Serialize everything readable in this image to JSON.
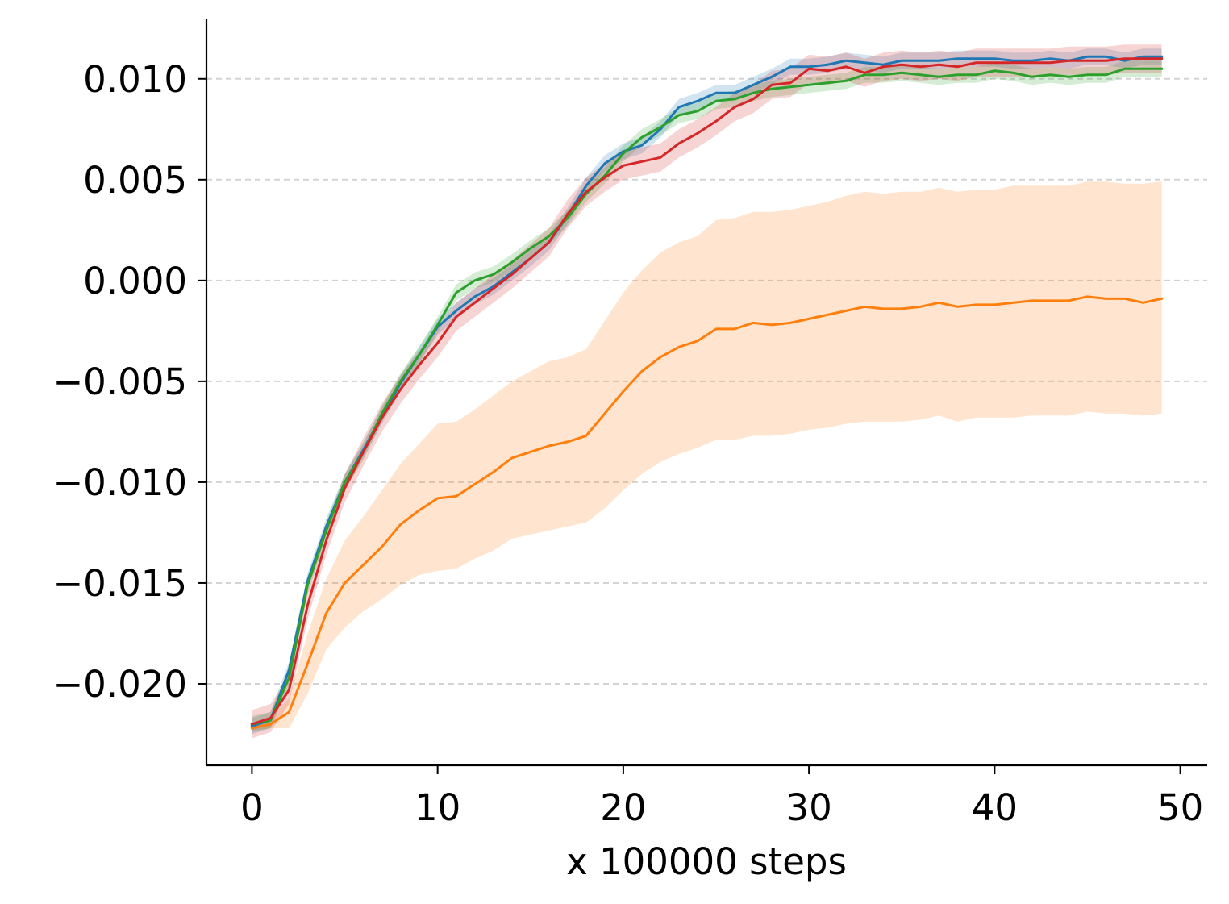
{
  "chart_data": {
    "type": "line",
    "title": "",
    "xlabel": "x 100000 steps",
    "ylabel": "",
    "xlim": [
      -2.45,
      51.45
    ],
    "ylim": [
      -0.02404,
      0.01295
    ],
    "xticks": [
      0,
      10,
      20,
      30,
      40,
      50
    ],
    "xtick_labels": [
      "0",
      "10",
      "20",
      "30",
      "40",
      "50"
    ],
    "yticks": [
      0.01,
      0.005,
      0.0,
      -0.005,
      -0.01,
      -0.015,
      -0.02
    ],
    "ytick_labels": [
      "0.010",
      "0.005",
      "0.000",
      "−0.005",
      "−0.010",
      "−0.015",
      "−0.020"
    ],
    "grid": "horizontal dashed",
    "legend": "none",
    "x": [
      0,
      1,
      2,
      3,
      4,
      5,
      6,
      7,
      8,
      9,
      10,
      11,
      12,
      13,
      14,
      15,
      16,
      17,
      18,
      19,
      20,
      21,
      22,
      23,
      24,
      25,
      26,
      27,
      28,
      29,
      30,
      31,
      32,
      33,
      34,
      35,
      36,
      37,
      38,
      39,
      40,
      41,
      42,
      43,
      44,
      45,
      46,
      47,
      48,
      49
    ],
    "series": [
      {
        "name": "blue",
        "color": "#1f77b4",
        "values": [
          -0.0221,
          -0.0218,
          -0.0193,
          -0.0149,
          -0.0122,
          -0.01,
          -0.0084,
          -0.0067,
          -0.0051,
          -0.0037,
          -0.0023,
          -0.0015,
          -0.0008,
          -0.0003,
          0.0004,
          0.0011,
          0.0019,
          0.0032,
          0.0047,
          0.0058,
          0.0064,
          0.0067,
          0.0075,
          0.0086,
          0.0089,
          0.0093,
          0.0093,
          0.0097,
          0.0101,
          0.0106,
          0.0106,
          0.0107,
          0.0109,
          0.0108,
          0.0107,
          0.0109,
          0.0109,
          0.0109,
          0.011,
          0.011,
          0.011,
          0.0109,
          0.0109,
          0.011,
          0.0109,
          0.0111,
          0.0111,
          0.0109,
          0.0111,
          0.0111
        ],
        "band": 0.0004
      },
      {
        "name": "orange",
        "color": "#ff7f0e",
        "values": [
          -0.0222,
          -0.022,
          -0.0214,
          -0.019,
          -0.0165,
          -0.015,
          -0.0141,
          -0.0132,
          -0.0121,
          -0.0114,
          -0.0108,
          -0.0107,
          -0.0101,
          -0.0095,
          -0.0088,
          -0.0085,
          -0.0082,
          -0.008,
          -0.0077,
          -0.0066,
          -0.0055,
          -0.0045,
          -0.0038,
          -0.0033,
          -0.003,
          -0.0024,
          -0.0024,
          -0.0021,
          -0.0022,
          -0.0021,
          -0.0019,
          -0.0017,
          -0.0015,
          -0.0013,
          -0.0014,
          -0.0014,
          -0.0013,
          -0.0011,
          -0.0013,
          -0.0012,
          -0.0012,
          -0.0011,
          -0.001,
          -0.001,
          -0.001,
          -0.0008,
          -0.0009,
          -0.0009,
          -0.0011,
          -0.0009
        ],
        "band_lower": [
          -0.0223,
          -0.0222,
          -0.0222,
          -0.0205,
          -0.0183,
          -0.0172,
          -0.0164,
          -0.0158,
          -0.0151,
          -0.0146,
          -0.0144,
          -0.0143,
          -0.0138,
          -0.0134,
          -0.0128,
          -0.0126,
          -0.0124,
          -0.0122,
          -0.012,
          -0.0113,
          -0.0104,
          -0.0096,
          -0.009,
          -0.0086,
          -0.0083,
          -0.0079,
          -0.0079,
          -0.0077,
          -0.0077,
          -0.0076,
          -0.0074,
          -0.0073,
          -0.0071,
          -0.007,
          -0.007,
          -0.007,
          -0.0069,
          -0.0067,
          -0.007,
          -0.0068,
          -0.0068,
          -0.0068,
          -0.0067,
          -0.0067,
          -0.0067,
          -0.0065,
          -0.0066,
          -0.0066,
          -0.0067,
          -0.0066
        ],
        "band_upper": [
          -0.0221,
          -0.0217,
          -0.0207,
          -0.0175,
          -0.0148,
          -0.0129,
          -0.0117,
          -0.0104,
          -0.0091,
          -0.0081,
          -0.0071,
          -0.007,
          -0.0064,
          -0.0057,
          -0.005,
          -0.0045,
          -0.004,
          -0.0038,
          -0.0034,
          -0.002,
          -0.0006,
          0.0005,
          0.0014,
          0.0019,
          0.0022,
          0.003,
          0.0031,
          0.0034,
          0.0034,
          0.0035,
          0.0037,
          0.0039,
          0.0042,
          0.0044,
          0.0043,
          0.0044,
          0.0044,
          0.0046,
          0.0044,
          0.0045,
          0.0045,
          0.0047,
          0.0047,
          0.0047,
          0.0047,
          0.0049,
          0.0049,
          0.0048,
          0.0048,
          0.0049
        ]
      },
      {
        "name": "green",
        "color": "#2ca02c",
        "values": [
          -0.022,
          -0.0218,
          -0.0197,
          -0.0151,
          -0.0124,
          -0.01,
          -0.0085,
          -0.0066,
          -0.005,
          -0.0037,
          -0.0022,
          -0.0006,
          0.0,
          0.0003,
          0.0009,
          0.0016,
          0.0022,
          0.0031,
          0.0043,
          0.0052,
          0.0063,
          0.0071,
          0.0076,
          0.0082,
          0.0084,
          0.0089,
          0.009,
          0.0093,
          0.0095,
          0.0096,
          0.0097,
          0.0098,
          0.0099,
          0.0102,
          0.0102,
          0.0103,
          0.0102,
          0.0101,
          0.0102,
          0.0102,
          0.0104,
          0.0103,
          0.0101,
          0.0102,
          0.0101,
          0.0102,
          0.0102,
          0.0105,
          0.0105,
          0.0105
        ],
        "band": 0.0004
      },
      {
        "name": "red",
        "color": "#d62728",
        "values": [
          -0.022,
          -0.0217,
          -0.0203,
          -0.0161,
          -0.0129,
          -0.0103,
          -0.0085,
          -0.0068,
          -0.0054,
          -0.0042,
          -0.0031,
          -0.0018,
          -0.0011,
          -0.0004,
          0.0003,
          0.0011,
          0.0019,
          0.0033,
          0.0044,
          0.0051,
          0.0057,
          0.0059,
          0.0061,
          0.0068,
          0.0073,
          0.0079,
          0.0086,
          0.009,
          0.0097,
          0.0098,
          0.0105,
          0.0104,
          0.0106,
          0.0103,
          0.0106,
          0.0107,
          0.0106,
          0.0107,
          0.0106,
          0.0108,
          0.0108,
          0.0108,
          0.0108,
          0.0108,
          0.0109,
          0.0109,
          0.0109,
          0.011,
          0.011,
          0.011
        ],
        "band": 0.0007
      }
    ]
  }
}
